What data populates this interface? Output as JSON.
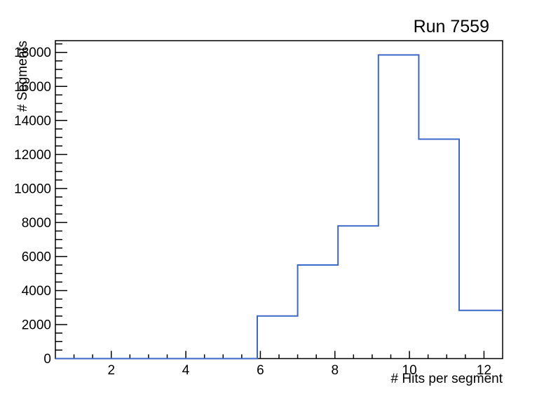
{
  "chart_data": {
    "type": "histogram-step",
    "title": "Run 7559",
    "xlabel": "# Hits per segment",
    "ylabel": "# Segments",
    "xlim": [
      0.5,
      12.5
    ],
    "ylim": [
      0,
      18690
    ],
    "x_major_ticks": [
      2,
      4,
      6,
      8,
      10,
      12
    ],
    "x_major_tick_labels": [
      "2",
      "4",
      "6",
      "8",
      "10",
      "12"
    ],
    "x_minor_step": 0.5,
    "y_major_step": 2000,
    "y_minor_step": 500,
    "y_major_tick_labels": [
      "0",
      "2000",
      "4000",
      "6000",
      "8000",
      "10000",
      "12000",
      "14000",
      "16000",
      "18000"
    ],
    "bin_edges": [
      0.5,
      5.9167,
      7.0,
      8.0833,
      9.1667,
      10.25,
      11.3333,
      12.5
    ],
    "counts": [
      0,
      2500,
      5500,
      7800,
      17850,
      12900,
      2830
    ],
    "grid": false,
    "legend": false,
    "line_color": "#3b68c6",
    "line_width": 2,
    "axis_color": "#000000",
    "background_color": "#ffffff"
  }
}
